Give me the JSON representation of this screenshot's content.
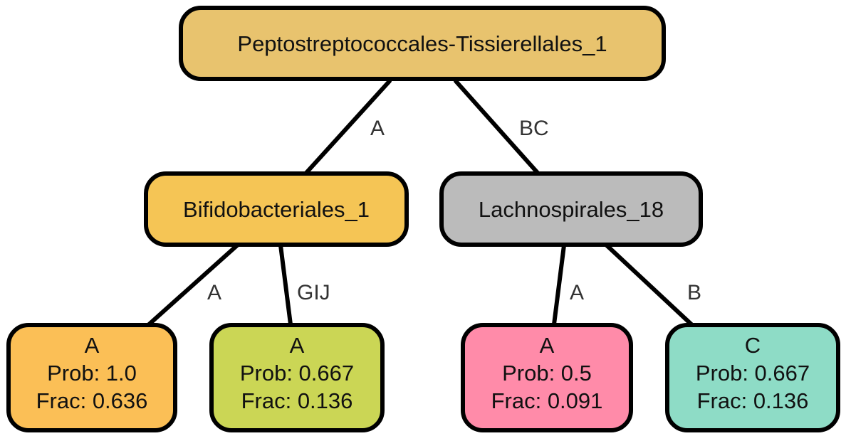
{
  "tree": {
    "root": {
      "label": "Peptostreptococcales-Tissierellales_1",
      "color": "#E8C36E"
    },
    "left_internal": {
      "label": "Bifidobacteriales_1",
      "color": "#F5C555"
    },
    "right_internal": {
      "label": "Lachnospirales_18",
      "color": "#BBBBBB"
    },
    "leaves": [
      {
        "class": "A",
        "prob": "Prob: 1.0",
        "frac": "Frac: 0.636",
        "color": "#FBBF56"
      },
      {
        "class": "A",
        "prob": "Prob: 0.667",
        "frac": "Frac: 0.136",
        "color": "#CBD655"
      },
      {
        "class": "A",
        "prob": "Prob: 0.5",
        "frac": "Frac: 0.091",
        "color": "#FF8BA9"
      },
      {
        "class": "C",
        "prob": "Prob: 0.667",
        "frac": "Frac: 0.136",
        "color": "#8EDCC6"
      }
    ],
    "edges": {
      "root_left": "A",
      "root_right": "BC",
      "left_leaf1": "A",
      "left_leaf2": "GIJ",
      "right_leaf3": "A",
      "right_leaf4": "B"
    }
  }
}
